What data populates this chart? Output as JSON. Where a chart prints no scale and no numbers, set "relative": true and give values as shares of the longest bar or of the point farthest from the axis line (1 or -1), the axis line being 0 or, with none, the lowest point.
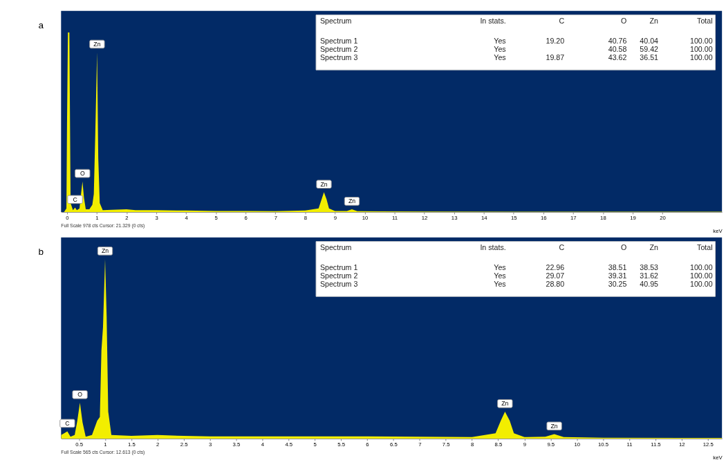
{
  "chart_data": [
    {
      "type": "area",
      "title": "a",
      "xlabel": "keV",
      "relative": true,
      "color": "#f2ee00",
      "grid": false,
      "x": [
        -0.2,
        -0.1,
        -0.02,
        0.0,
        0.03,
        0.08,
        0.12,
        0.2,
        0.27,
        0.33,
        0.42,
        0.47,
        0.52,
        0.57,
        0.63,
        0.75,
        0.85,
        0.9,
        0.95,
        1.01,
        1.05,
        1.1,
        1.2,
        1.5,
        2.0,
        2.3,
        3,
        4,
        5,
        6,
        7,
        8,
        8.45,
        8.55,
        8.63,
        8.72,
        8.8,
        9.0,
        9.4,
        9.57,
        9.75,
        10.5,
        12,
        15,
        18,
        22
      ],
      "values": [
        0,
        0,
        0.02,
        0.49,
        1.0,
        1.0,
        0.05,
        0.01,
        0.025,
        0.01,
        0.02,
        0.1,
        0.17,
        0.08,
        0.015,
        0.015,
        0.04,
        0.1,
        0.44,
        0.89,
        0.3,
        0.05,
        0.01,
        0.012,
        0.015,
        0.01,
        0.01,
        0.008,
        0.006,
        0.006,
        0.005,
        0.008,
        0.02,
        0.07,
        0.11,
        0.07,
        0.02,
        0.006,
        0.006,
        0.015,
        0.005,
        0.004,
        0.003,
        0.002,
        0.002,
        0.002
      ],
      "xlim": [
        -0.2,
        22
      ],
      "xticks": [
        0,
        1,
        2,
        3,
        4,
        5,
        6,
        7,
        8,
        9,
        10,
        11,
        12,
        13,
        14,
        15,
        16,
        17,
        18,
        19,
        20
      ],
      "annotations": [
        "Spectrum",
        "In stats.",
        "C",
        "O",
        "Zn",
        "Total",
        "Spectrum 1",
        "Yes",
        "19.20",
        "40.76",
        "40.04",
        "100.00",
        "Spectrum 2",
        "Yes",
        null,
        "40.58",
        "59.42",
        "100.00",
        "Spectrum 3",
        "Yes",
        "19.87",
        "43.62",
        "36.51",
        "100.00",
        "Full Scale 978 cts Cursor: 21.329  (0 cts)",
        {
          "text": "Zn",
          "x": 1.01,
          "y": 0.89
        },
        {
          "text": "C",
          "x": 0.27,
          "y": 0.025
        },
        {
          "text": "O",
          "x": 0.52,
          "y": 0.17
        },
        {
          "text": "Zn",
          "x": 8.63,
          "y": 0.11
        },
        {
          "text": "Zn",
          "x": 9.57,
          "y": 0.015
        }
      ]
    },
    {
      "type": "area",
      "title": "b",
      "xlabel": "keV",
      "relative": true,
      "color": "#f2ee00",
      "grid": false,
      "x": [
        0.16,
        0.22,
        0.28,
        0.34,
        0.42,
        0.47,
        0.52,
        0.57,
        0.63,
        0.75,
        0.85,
        0.9,
        0.93,
        0.96,
        1.0,
        1.03,
        1.06,
        1.12,
        1.5,
        2.0,
        2.5,
        3,
        4,
        5,
        6,
        7,
        8,
        8.45,
        8.55,
        8.63,
        8.72,
        8.8,
        9.0,
        9.4,
        9.57,
        9.75,
        10.5,
        12,
        12.77
      ],
      "values": [
        0.02,
        0.03,
        0.04,
        0.01,
        0.02,
        0.1,
        0.2,
        0.09,
        0.01,
        0.02,
        0.1,
        0.12,
        0.49,
        0.62,
        1.0,
        0.68,
        0.15,
        0.02,
        0.015,
        0.02,
        0.015,
        0.012,
        0.012,
        0.012,
        0.012,
        0.01,
        0.008,
        0.03,
        0.1,
        0.15,
        0.1,
        0.03,
        0.008,
        0.01,
        0.025,
        0.008,
        0.005,
        0.004,
        0.004
      ],
      "xlim": [
        0.16,
        12.77
      ],
      "xticks": [
        0.5,
        1,
        1.5,
        2,
        2.5,
        3,
        3.5,
        4,
        4.5,
        5,
        5.5,
        6,
        6.5,
        7,
        7.5,
        8,
        8.5,
        9,
        9.5,
        10,
        10.5,
        11,
        11.5,
        12,
        12.5
      ],
      "annotations": [
        "Spectrum",
        "In stats.",
        "C",
        "O",
        "Zn",
        "Total",
        "Spectrum 1",
        "Yes",
        "22.96",
        "38.51",
        "38.53",
        "100.00",
        "Spectrum 2",
        "Yes",
        "29.07",
        "39.31",
        "31.62",
        "100.00",
        "Spectrum 3",
        "Yes",
        "28.80",
        "30.25",
        "40.95",
        "100.00",
        "Full Scale 565 cts Cursor: 12.613  (0 cts)",
        {
          "text": "Zn",
          "x": 1.0,
          "y": 1.0
        },
        {
          "text": "C",
          "x": 0.28,
          "y": 0.04
        },
        {
          "text": "O",
          "x": 0.52,
          "y": 0.2
        },
        {
          "text": "Zn",
          "x": 8.63,
          "y": 0.15
        },
        {
          "text": "Zn",
          "x": 9.57,
          "y": 0.025
        }
      ]
    }
  ]
}
